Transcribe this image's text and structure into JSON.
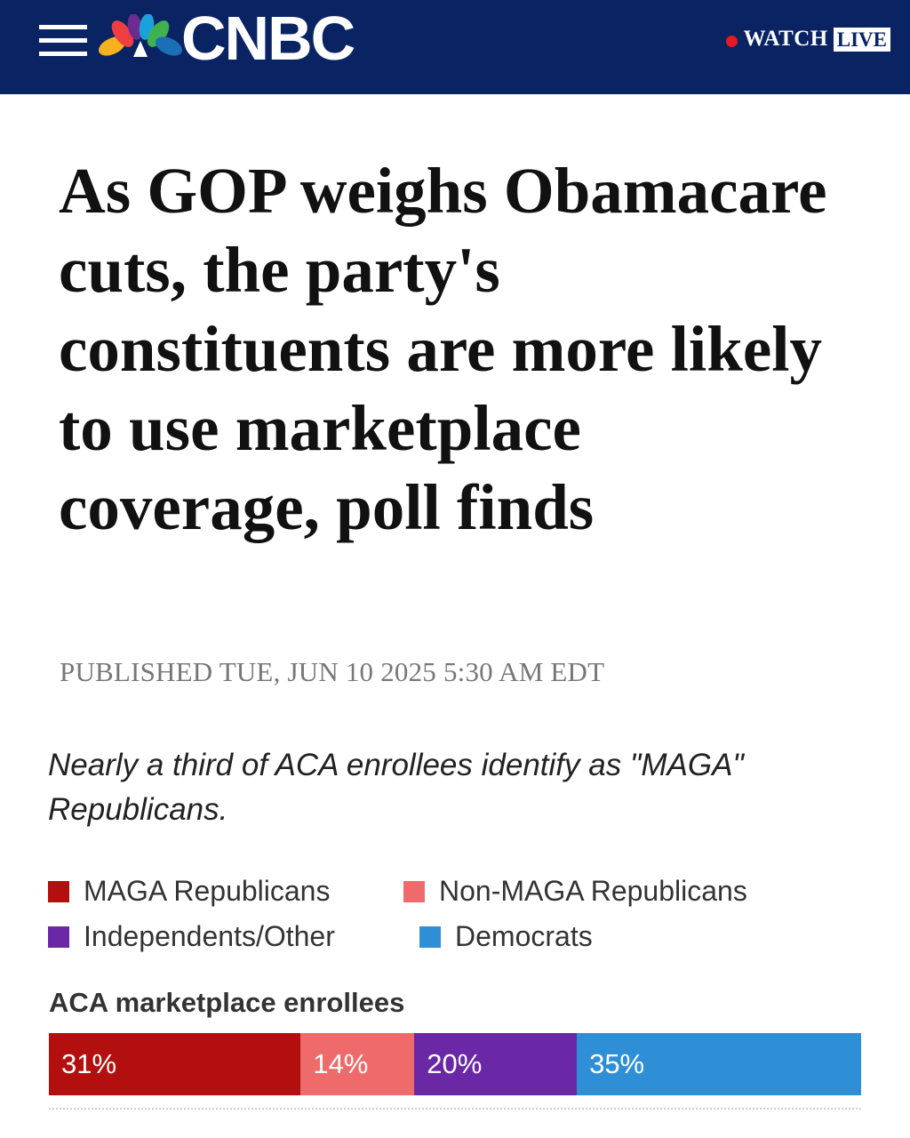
{
  "header": {
    "brand": "CNBC",
    "watch_label": "WATCH",
    "live_label": "LIVE",
    "colors": {
      "background": "#0a2463",
      "live_dot": "#e31b23"
    },
    "icons": [
      "hamburger-menu-icon",
      "peacock-logo-icon"
    ]
  },
  "article": {
    "headline": "As GOP weighs Obamacare cuts, the party's constituents are more likely to use marketplace coverage, poll finds",
    "published": "PUBLISHED TUE, JUN 10 2025 5:30 AM EDT"
  },
  "chart_data": {
    "type": "bar",
    "title": "Nearly a third of ACA enrollees identify as \"MAGA\" Republicans.",
    "category_label": "ACA marketplace enrollees",
    "legend": [
      {
        "name": "MAGA Republicans",
        "color": "#b30f0f"
      },
      {
        "name": "Non-MAGA Republicans",
        "color": "#ef6b6b"
      },
      {
        "name": "Independents/Other",
        "color": "#6a27a6"
      },
      {
        "name": "Democrats",
        "color": "#2f8fd6"
      }
    ],
    "series": [
      {
        "name": "MAGA Republicans",
        "value": 31,
        "label": "31%"
      },
      {
        "name": "Non-MAGA Republicans",
        "value": 14,
        "label": "14%"
      },
      {
        "name": "Independents/Other",
        "value": 20,
        "label": "20%"
      },
      {
        "name": "Democrats",
        "value": 35,
        "label": "35%"
      }
    ],
    "stacked": true,
    "total": 100
  }
}
